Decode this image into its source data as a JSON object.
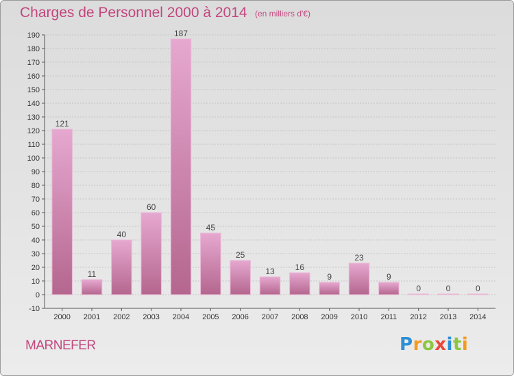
{
  "header": {
    "title": "Charges de Personnel 2000 à 2014",
    "subtitle": "(en milliers d'€)"
  },
  "footer": {
    "commune": "MARNEFER",
    "logo_letters": [
      {
        "ch": "P",
        "color": "#2c8fd6"
      },
      {
        "ch": "r",
        "color": "#f39a1e"
      },
      {
        "ch": "o",
        "color": "#8cc63f"
      },
      {
        "ch": "x",
        "color": "#e8473b"
      },
      {
        "ch": "i",
        "color": "#2c8fd6"
      },
      {
        "ch": "t",
        "color": "#8cc63f"
      },
      {
        "ch": "i",
        "color": "#f39a1e"
      }
    ]
  },
  "chart_data": {
    "type": "bar",
    "title": "Charges de Personnel 2000 à 2014",
    "subtitle": "(en milliers d'€)",
    "categories": [
      "2000",
      "2001",
      "2002",
      "2003",
      "2004",
      "2005",
      "2006",
      "2007",
      "2008",
      "2009",
      "2010",
      "2011",
      "2012",
      "2013",
      "2014"
    ],
    "values": [
      121,
      11,
      40,
      60,
      187,
      45,
      25,
      13,
      16,
      9,
      23,
      9,
      0,
      0,
      0
    ],
    "ylim": [
      -10,
      190
    ],
    "yticks": [
      -10,
      0,
      10,
      20,
      30,
      40,
      50,
      60,
      70,
      80,
      90,
      100,
      110,
      120,
      130,
      140,
      150,
      160,
      170,
      180,
      190
    ],
    "grid": true,
    "bar_color": "#d78fbb",
    "xlabel": "",
    "ylabel": ""
  }
}
